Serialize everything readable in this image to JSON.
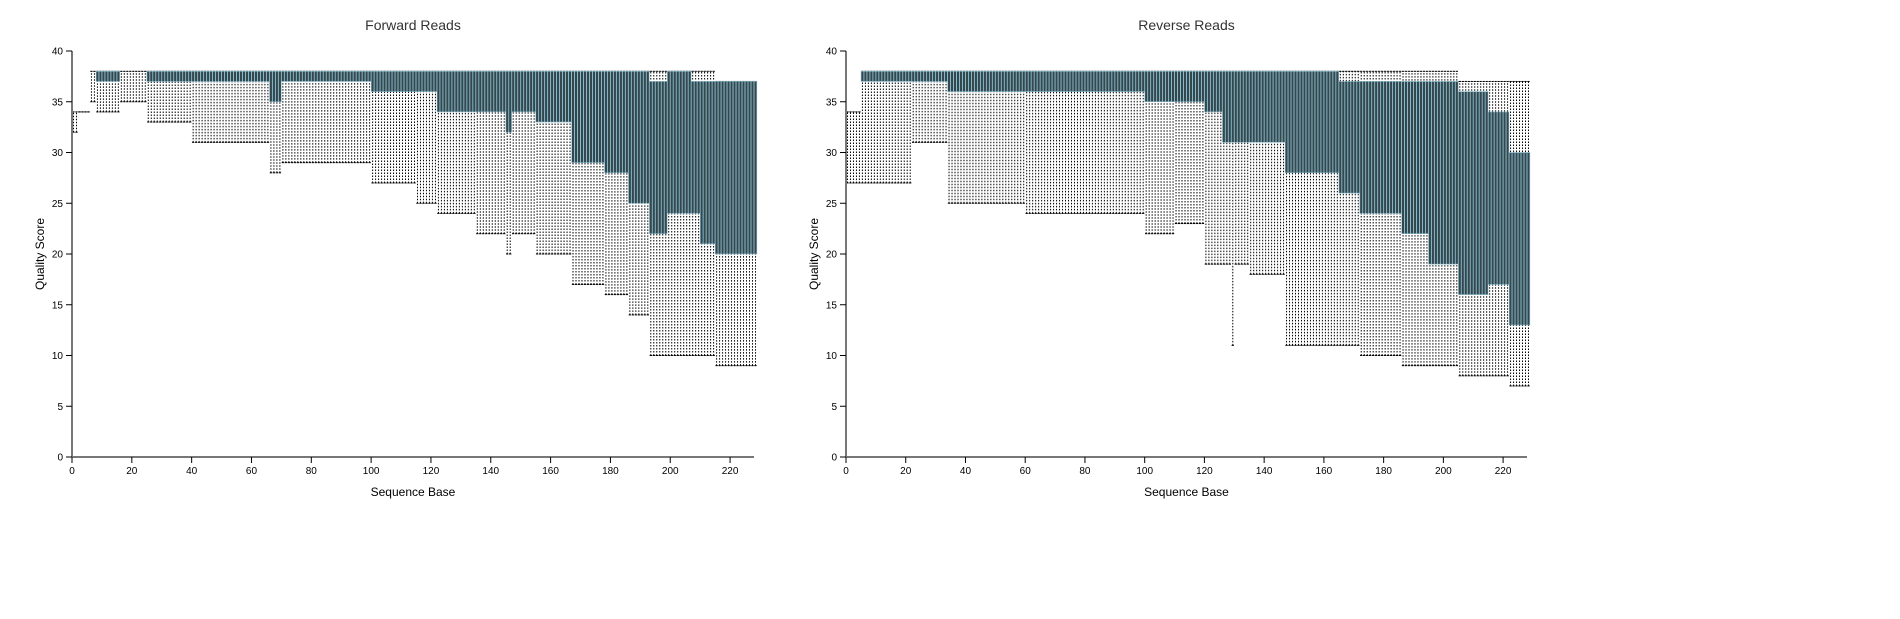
{
  "chart_data": [
    {
      "type": "box",
      "title": "Forward Reads",
      "xlabel": "Sequence Base",
      "ylabel": "Quality Score",
      "xlim": [
        0,
        228
      ],
      "ylim": [
        0,
        40
      ],
      "xticks": [
        0,
        20,
        40,
        60,
        80,
        100,
        120,
        140,
        160,
        180,
        200,
        220
      ],
      "yticks": [
        0,
        5,
        10,
        15,
        20,
        25,
        30,
        35,
        40
      ],
      "box_color": "#34474d",
      "columns": [
        "from_base",
        "to_base",
        "whisker_low",
        "q1",
        "q3",
        "whisker_high"
      ],
      "runs": [
        [
          0,
          1,
          32,
          34,
          34,
          34
        ],
        [
          2,
          5,
          34,
          34,
          34,
          34
        ],
        [
          6,
          7,
          35,
          38,
          38,
          38
        ],
        [
          8,
          15,
          34,
          37,
          38,
          38
        ],
        [
          16,
          24,
          35,
          38,
          38,
          38
        ],
        [
          25,
          39,
          33,
          37,
          38,
          38
        ],
        [
          40,
          65,
          31,
          37,
          38,
          38
        ],
        [
          66,
          69,
          28,
          35,
          38,
          38
        ],
        [
          70,
          99,
          29,
          37,
          38,
          38
        ],
        [
          100,
          114,
          27,
          36,
          38,
          38
        ],
        [
          115,
          121,
          25,
          36,
          38,
          38
        ],
        [
          122,
          134,
          24,
          34,
          38,
          38
        ],
        [
          135,
          144,
          22,
          34,
          38,
          38
        ],
        [
          145,
          146,
          20,
          32,
          38,
          38
        ],
        [
          147,
          154,
          22,
          34,
          38,
          38
        ],
        [
          155,
          166,
          20,
          33,
          38,
          38
        ],
        [
          167,
          177,
          17,
          29,
          38,
          38
        ],
        [
          178,
          185,
          16,
          28,
          38,
          38
        ],
        [
          186,
          192,
          14,
          25,
          38,
          38
        ],
        [
          193,
          198,
          10,
          22,
          37,
          38
        ],
        [
          199,
          206,
          10,
          24,
          38,
          38
        ],
        [
          207,
          209,
          10,
          24,
          37,
          38
        ],
        [
          210,
          214,
          10,
          21,
          37,
          38
        ],
        [
          215,
          228,
          9,
          20,
          37,
          37
        ]
      ]
    },
    {
      "type": "box",
      "title": "Reverse Reads",
      "xlabel": "Sequence Base",
      "ylabel": "Quality Score",
      "xlim": [
        0,
        228
      ],
      "ylim": [
        0,
        40
      ],
      "xticks": [
        0,
        20,
        40,
        60,
        80,
        100,
        120,
        140,
        160,
        180,
        200,
        220
      ],
      "yticks": [
        0,
        5,
        10,
        15,
        20,
        25,
        30,
        35,
        40
      ],
      "box_color": "#34474d",
      "columns": [
        "from_base",
        "to_base",
        "whisker_low",
        "q1",
        "q3",
        "whisker_high"
      ],
      "runs": [
        [
          0,
          4,
          27,
          34,
          34,
          34
        ],
        [
          5,
          21,
          27,
          37,
          38,
          38
        ],
        [
          22,
          33,
          31,
          37,
          38,
          38
        ],
        [
          34,
          59,
          25,
          36,
          38,
          38
        ],
        [
          60,
          99,
          24,
          36,
          38,
          38
        ],
        [
          100,
          109,
          22,
          35,
          38,
          38
        ],
        [
          110,
          119,
          23,
          35,
          38,
          38
        ],
        [
          120,
          125,
          19,
          34,
          38,
          38
        ],
        [
          126,
          128,
          19,
          31,
          38,
          38
        ],
        [
          129,
          129,
          11,
          31,
          38,
          38
        ],
        [
          130,
          134,
          19,
          31,
          38,
          38
        ],
        [
          135,
          146,
          18,
          31,
          38,
          38
        ],
        [
          147,
          164,
          11,
          28,
          38,
          38
        ],
        [
          165,
          171,
          11,
          26,
          37,
          38
        ],
        [
          172,
          185,
          10,
          24,
          37,
          38
        ],
        [
          186,
          194,
          9,
          22,
          37,
          38
        ],
        [
          195,
          204,
          9,
          19,
          37,
          38
        ],
        [
          205,
          214,
          8,
          16,
          36,
          37
        ],
        [
          215,
          221,
          8,
          17,
          34,
          37
        ],
        [
          222,
          228,
          7,
          13,
          30,
          37
        ]
      ]
    }
  ]
}
